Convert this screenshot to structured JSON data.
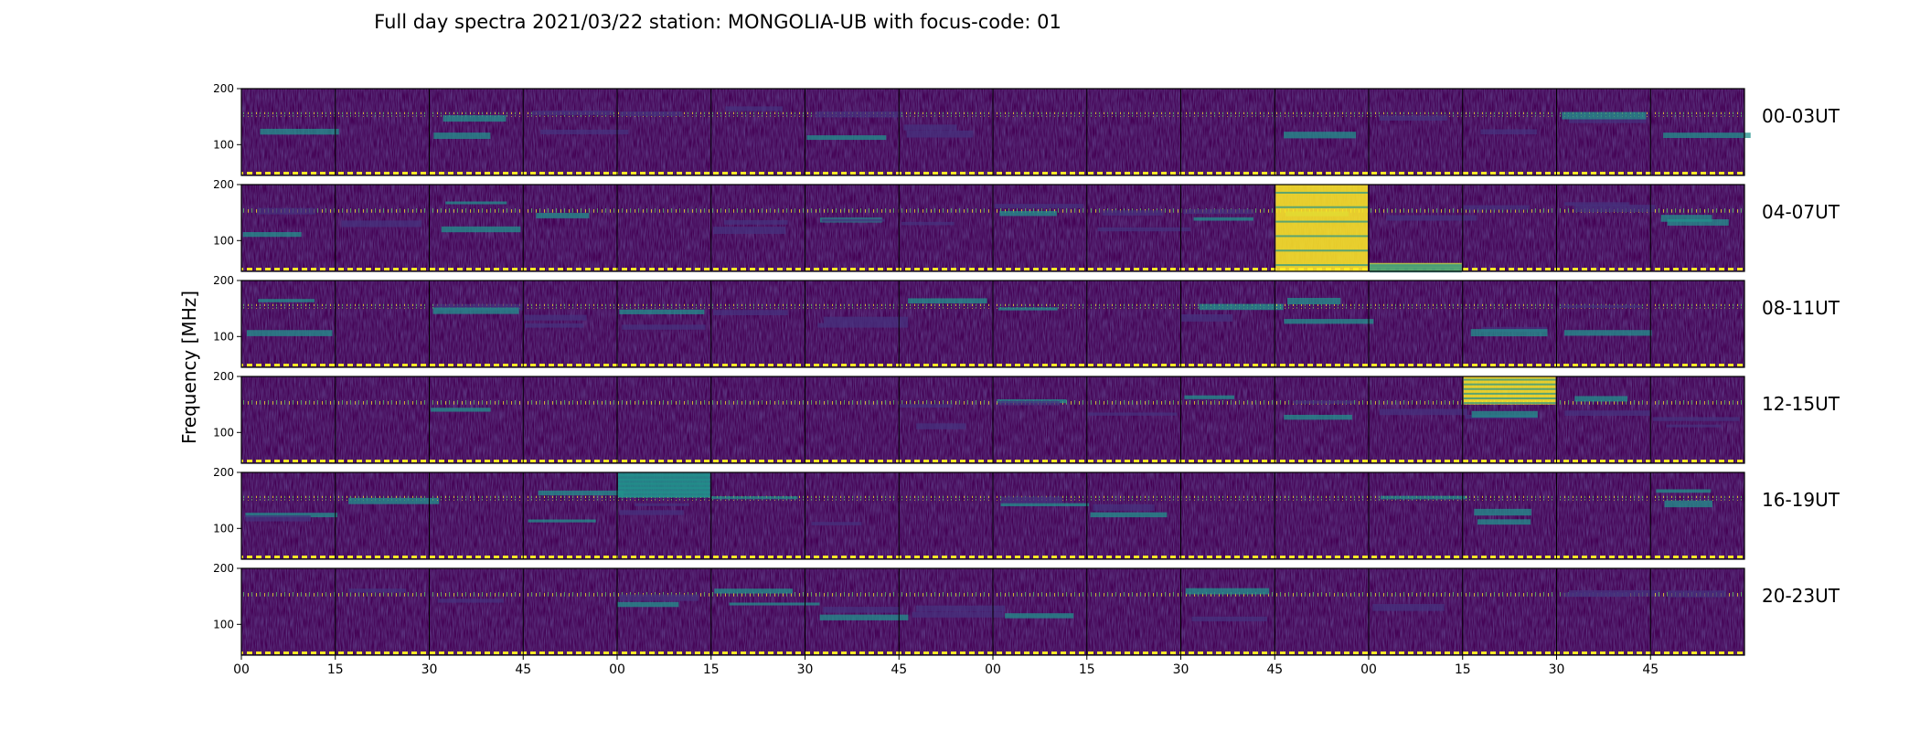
{
  "chart_data": {
    "type": "heatmap",
    "title": "Full day spectra 2021/03/22 station: MONGOLIA-UB with focus-code: 01",
    "ylabel": "Frequency [MHz]",
    "xlabel": "",
    "ylim": [
      45,
      200
    ],
    "y_tick_labels": [
      "200",
      "100"
    ],
    "x_tick_labels": [
      "00",
      "15",
      "30",
      "45",
      "00",
      "15",
      "30",
      "45",
      "00",
      "15",
      "30",
      "45",
      "00",
      "15",
      "30",
      "45"
    ],
    "colormap": "viridis",
    "colors": {
      "background": "#440154",
      "low": "#46327e",
      "mid": "#21918c",
      "high": "#5ec962",
      "max": "#fde725"
    },
    "rows": [
      {
        "label": "00-03UT",
        "bursts": []
      },
      {
        "label": "04-07UT",
        "bursts": [
          {
            "panel": 11,
            "f_lo": 45,
            "f_hi": 200,
            "intensity": "high"
          },
          {
            "panel": 12,
            "f_lo": 45,
            "f_hi": 60,
            "intensity": "high"
          }
        ]
      },
      {
        "label": "08-11UT",
        "bursts": []
      },
      {
        "label": "12-15UT",
        "bursts": [
          {
            "panel": 13,
            "f_lo": 150,
            "f_hi": 200,
            "intensity": "high"
          }
        ]
      },
      {
        "label": "16-19UT",
        "bursts": [
          {
            "panel": 4,
            "f_lo": 155,
            "f_hi": 200,
            "intensity": "mid"
          }
        ]
      },
      {
        "label": "20-23UT",
        "bursts": []
      }
    ]
  }
}
